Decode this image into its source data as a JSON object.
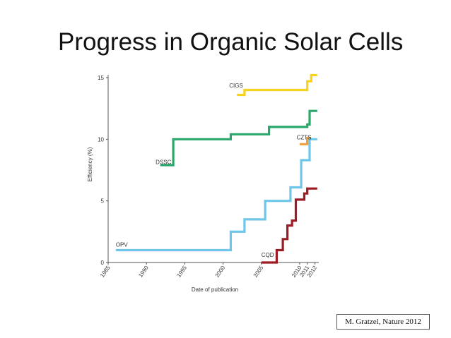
{
  "slide": {
    "title": "Progress in Organic Solar Cells",
    "citation": "M. Gratzel, Nature 2012"
  },
  "chart_data": {
    "type": "line",
    "step": true,
    "title": "",
    "xlabel": "Date of publication",
    "ylabel": "Efficiency (%)",
    "xlim": [
      1985,
      2012.5
    ],
    "ylim": [
      0,
      15
    ],
    "x_ticks": [
      1985,
      1990,
      1995,
      2000,
      2005,
      2010,
      2011,
      2012
    ],
    "y_ticks": [
      0,
      5,
      10,
      15
    ],
    "series": [
      {
        "name": "CIGS",
        "color": "#f5d31e",
        "label_pos": [
          2000.8,
          14.2
        ],
        "points": [
          [
            2001.8,
            13.6
          ],
          [
            2002.8,
            13.6
          ],
          [
            2002.8,
            14.0
          ],
          [
            2011.0,
            14.0
          ],
          [
            2011.0,
            14.7
          ],
          [
            2011.5,
            14.7
          ],
          [
            2011.5,
            15.2
          ],
          [
            2012.3,
            15.2
          ]
        ]
      },
      {
        "name": "DSSC",
        "color": "#2aa76a",
        "label_pos": [
          1991.2,
          8.0
        ],
        "points": [
          [
            1991.8,
            7.9
          ],
          [
            1993.5,
            7.9
          ],
          [
            1993.5,
            10.0
          ],
          [
            2001.0,
            10.0
          ],
          [
            2001.0,
            10.4
          ],
          [
            2006.0,
            10.4
          ],
          [
            2006.0,
            11.0
          ],
          [
            2011.0,
            11.0
          ],
          [
            2011.0,
            11.2
          ],
          [
            2011.3,
            11.2
          ],
          [
            2011.3,
            12.3
          ],
          [
            2012.3,
            12.3
          ]
        ]
      },
      {
        "name": "CZTS",
        "color": "#f39c3c",
        "label_pos": [
          2009.6,
          10.0
        ],
        "points": [
          [
            2010.0,
            9.6
          ],
          [
            2011.0,
            9.6
          ],
          [
            2011.0,
            10.1
          ],
          [
            2011.5,
            10.1
          ]
        ]
      },
      {
        "name": "OPV",
        "color": "#6ec6ea",
        "label_pos": [
          1986.0,
          1.3
        ],
        "points": [
          [
            1986.0,
            1.0
          ],
          [
            2001.0,
            1.0
          ],
          [
            2001.0,
            2.5
          ],
          [
            2002.8,
            2.5
          ],
          [
            2002.8,
            3.5
          ],
          [
            2005.5,
            3.5
          ],
          [
            2005.5,
            5.0
          ],
          [
            2008.8,
            5.0
          ],
          [
            2008.8,
            6.1
          ],
          [
            2010.2,
            6.1
          ],
          [
            2010.2,
            8.3
          ],
          [
            2011.3,
            8.3
          ],
          [
            2011.3,
            10.0
          ],
          [
            2012.3,
            10.0
          ]
        ]
      },
      {
        "name": "CQD",
        "color": "#9b1c24",
        "label_pos": [
          2005.0,
          0.45
        ],
        "points": [
          [
            2005.0,
            0.0
          ],
          [
            2007.0,
            0.0
          ],
          [
            2007.0,
            1.0
          ],
          [
            2007.8,
            1.0
          ],
          [
            2007.8,
            1.9
          ],
          [
            2008.4,
            1.9
          ],
          [
            2008.4,
            3.0
          ],
          [
            2009.0,
            3.0
          ],
          [
            2009.0,
            3.4
          ],
          [
            2009.5,
            3.4
          ],
          [
            2009.5,
            5.1
          ],
          [
            2010.6,
            5.1
          ],
          [
            2010.6,
            5.6
          ],
          [
            2011.0,
            5.6
          ],
          [
            2011.0,
            6.0
          ],
          [
            2012.3,
            6.0
          ]
        ]
      }
    ]
  }
}
